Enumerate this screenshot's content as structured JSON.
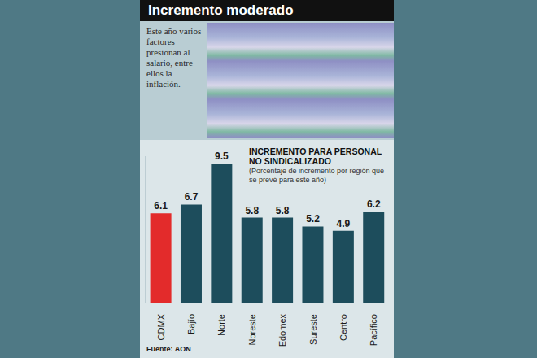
{
  "header": {
    "title": "Incremento moderado",
    "text": "Este año varios factores presionan al salario, entre ellos la inflación."
  },
  "chart_data": {
    "type": "bar",
    "title": "INCREMENTO PARA PERSONAL NO SINDICALIZADO",
    "subtitle": "(Porcentaje de incremento por región que se prevé para este año)",
    "categories": [
      "CDMX",
      "Bajío",
      "Norte",
      "Noreste",
      "Edomex",
      "Sureste",
      "Centro",
      "Pacífico"
    ],
    "values": [
      6.1,
      6.7,
      9.5,
      5.8,
      5.8,
      5.2,
      4.9,
      6.2
    ],
    "colors": [
      "#e32b2b",
      "#1d4d5c",
      "#1d4d5c",
      "#1d4d5c",
      "#1d4d5c",
      "#1d4d5c",
      "#1d4d5c",
      "#1d4d5c"
    ],
    "ylim": [
      0,
      10
    ],
    "data_labels": true,
    "tick_labels": "x",
    "grid": false
  },
  "source": "Fuente: AON"
}
